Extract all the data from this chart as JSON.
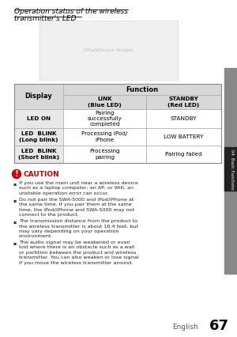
{
  "title_line1": "Operation status of the wireless",
  "title_line2": "transmitter's LED",
  "section_label": "04  Basic Functions",
  "page_num": "67",
  "page_label": "English",
  "table_header_row1": "Function",
  "table_col0_header": "Display",
  "table_col1_header": "LINK\n(Blue LED)",
  "table_col2_header": "STANDBY\n(Red LED)",
  "table_rows": [
    [
      "LED ON",
      "Pairing\nsuccessfully\ncompleted",
      "STANDBY"
    ],
    [
      "LED  BLINK\n(Long blink)",
      "Processing iPod/\niPhone",
      "LOW BATTERY"
    ],
    [
      "LED  BLINK\n(Short blink)",
      "Processing\npairing",
      "Pairing failed"
    ]
  ],
  "caution_title": "CAUTION",
  "caution_bullets": [
    "If you use the main unit near a wireless device\nsuch as a laptop computer, an AP, or Wifi, an\nunstable operation error can occur.",
    "Do not pair the SWA-5000 and iPod/iPhone at\nthe same time. If you pair them at the same\ntime, the iPod/iPhone and SWA-5000 may not\nconnect to the product.",
    "The transmission distance from the product to\nthe wireless transmitter is about 16.4 feet, but\nmay vary depending on your operation\nenvironment.",
    "The audio signal may be weakened or even\nlost where there is an obstacle such as a wall\nor partition between the product and wireless\ntransmitter. You can also weaken or lose signal\nif you move the wireless transmitter around."
  ],
  "bg_color": "#ffffff",
  "table_header_bg": "#d8d8d8",
  "table_border_color": "#aaaaaa",
  "table_cell_bg": "#e8e8e8",
  "title_color": "#000000",
  "text_color": "#222222",
  "caution_color": "#cc0000",
  "sidebar_bg": "#888888",
  "sidebar_dark": "#222222"
}
